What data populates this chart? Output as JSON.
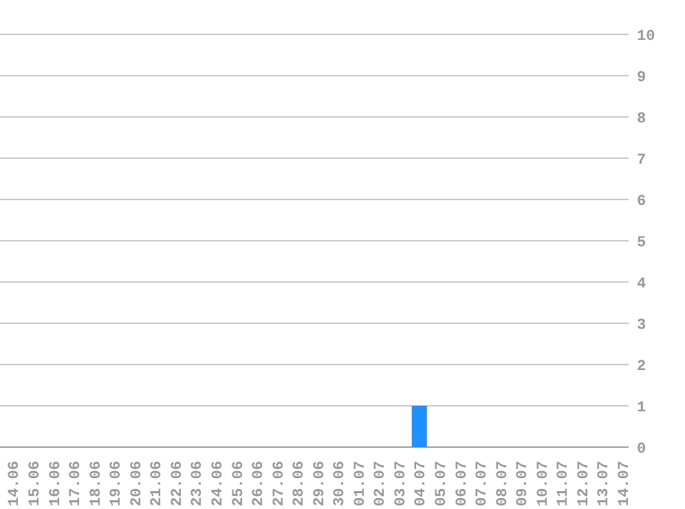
{
  "chart_data": {
    "type": "bar",
    "categories": [
      "14.06",
      "15.06",
      "16.06",
      "17.06",
      "18.06",
      "19.06",
      "20.06",
      "21.06",
      "22.06",
      "23.06",
      "24.06",
      "25.06",
      "26.06",
      "27.06",
      "28.06",
      "29.06",
      "30.06",
      "01.07",
      "02.07",
      "03.07",
      "04.07",
      "05.07",
      "06.07",
      "07.07",
      "08.07",
      "09.07",
      "10.07",
      "11.07",
      "12.07",
      "13.07",
      "14.07"
    ],
    "values": [
      0,
      0,
      0,
      0,
      0,
      0,
      0,
      0,
      0,
      0,
      0,
      0,
      0,
      0,
      0,
      0,
      0,
      0,
      0,
      0,
      1,
      0,
      0,
      0,
      0,
      0,
      0,
      0,
      0,
      0,
      0
    ],
    "color": "#1e90ff",
    "ylim": [
      0,
      10
    ],
    "yticks": [
      0,
      1,
      2,
      3,
      4,
      5,
      6,
      7,
      8,
      9,
      10
    ],
    "grid": "y"
  }
}
